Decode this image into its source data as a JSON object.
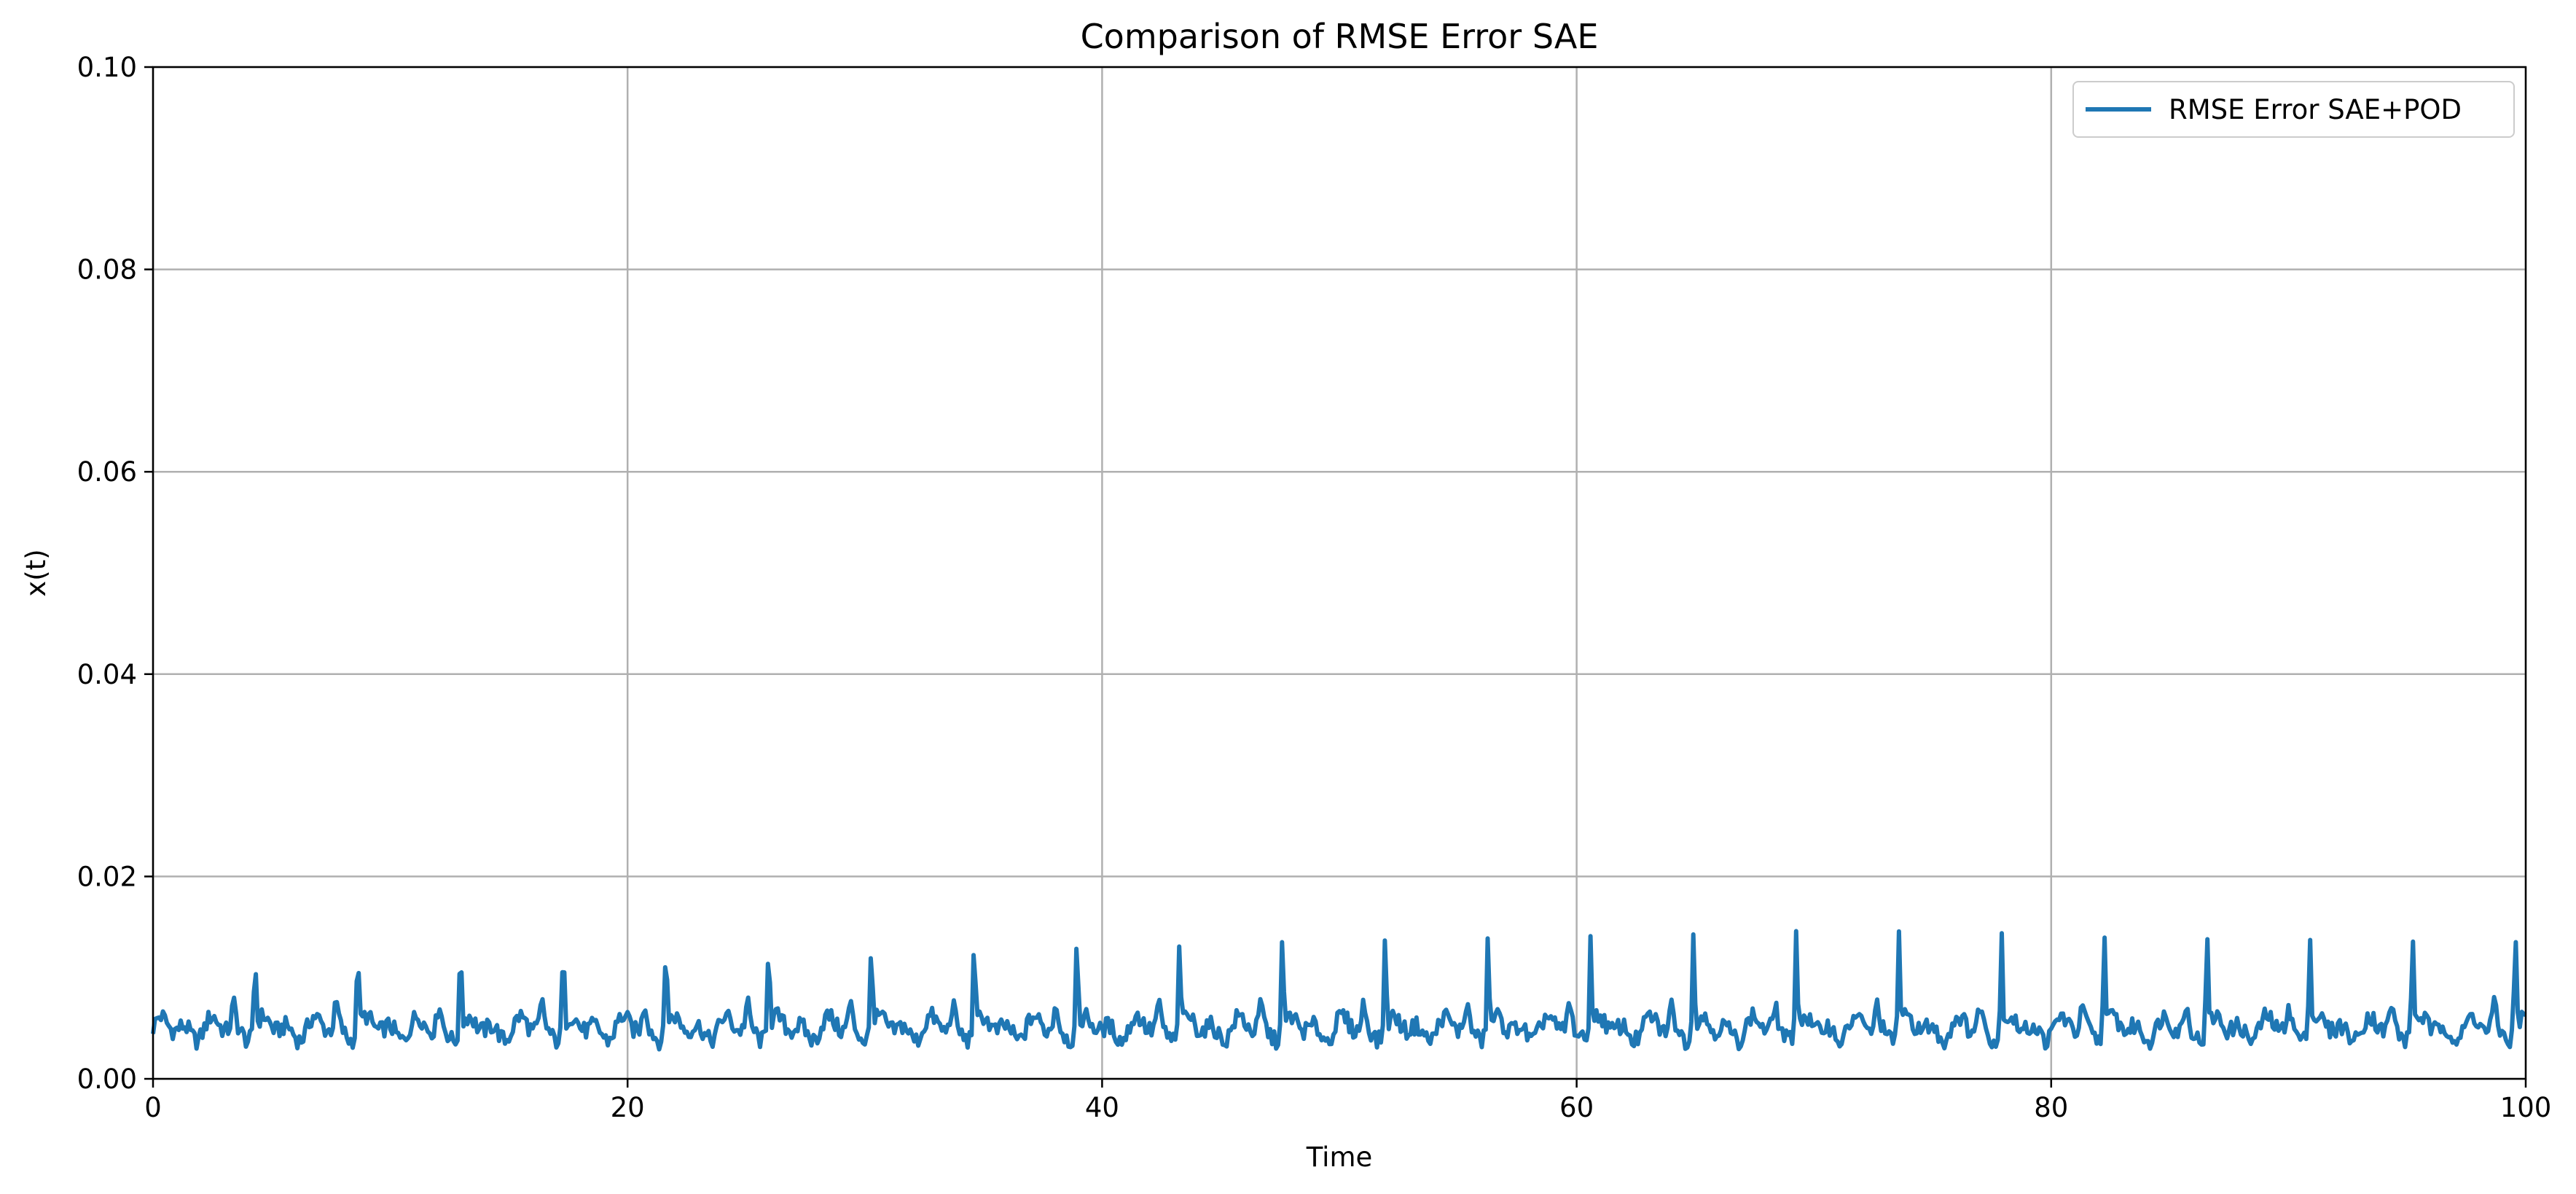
{
  "chart_data": {
    "type": "line",
    "title": "Comparison of RMSE Error SAE",
    "xlabel": "Time",
    "ylabel": "x(t)",
    "xlim": [
      0,
      100
    ],
    "ylim": [
      0,
      0.1
    ],
    "grid": true,
    "legend_position": "top-right",
    "x_ticks": [
      "0",
      "20",
      "40",
      "60",
      "80",
      "100"
    ],
    "y_ticks": [
      "0.00",
      "0.02",
      "0.04",
      "0.06",
      "0.08",
      "0.10"
    ],
    "series": [
      {
        "name": "RMSE Error SAE+POD",
        "color": "#1f77b4",
        "period": 4.33,
        "phase": 4.3,
        "peak_values": [
          0.0121,
          0.0128,
          0.0133,
          0.0133,
          0.0135,
          0.0137,
          0.0137,
          0.0138,
          0.0139,
          0.0139,
          0.0141,
          0.0141,
          0.0141,
          0.0142,
          0.0143,
          0.0146,
          0.0146,
          0.0145,
          0.0142,
          0.0142,
          0.0144,
          0.0145,
          0.0147,
          0.0151,
          0.0154
        ],
        "baseline_min": 0.0025,
        "baseline_max": 0.0075
      }
    ]
  }
}
